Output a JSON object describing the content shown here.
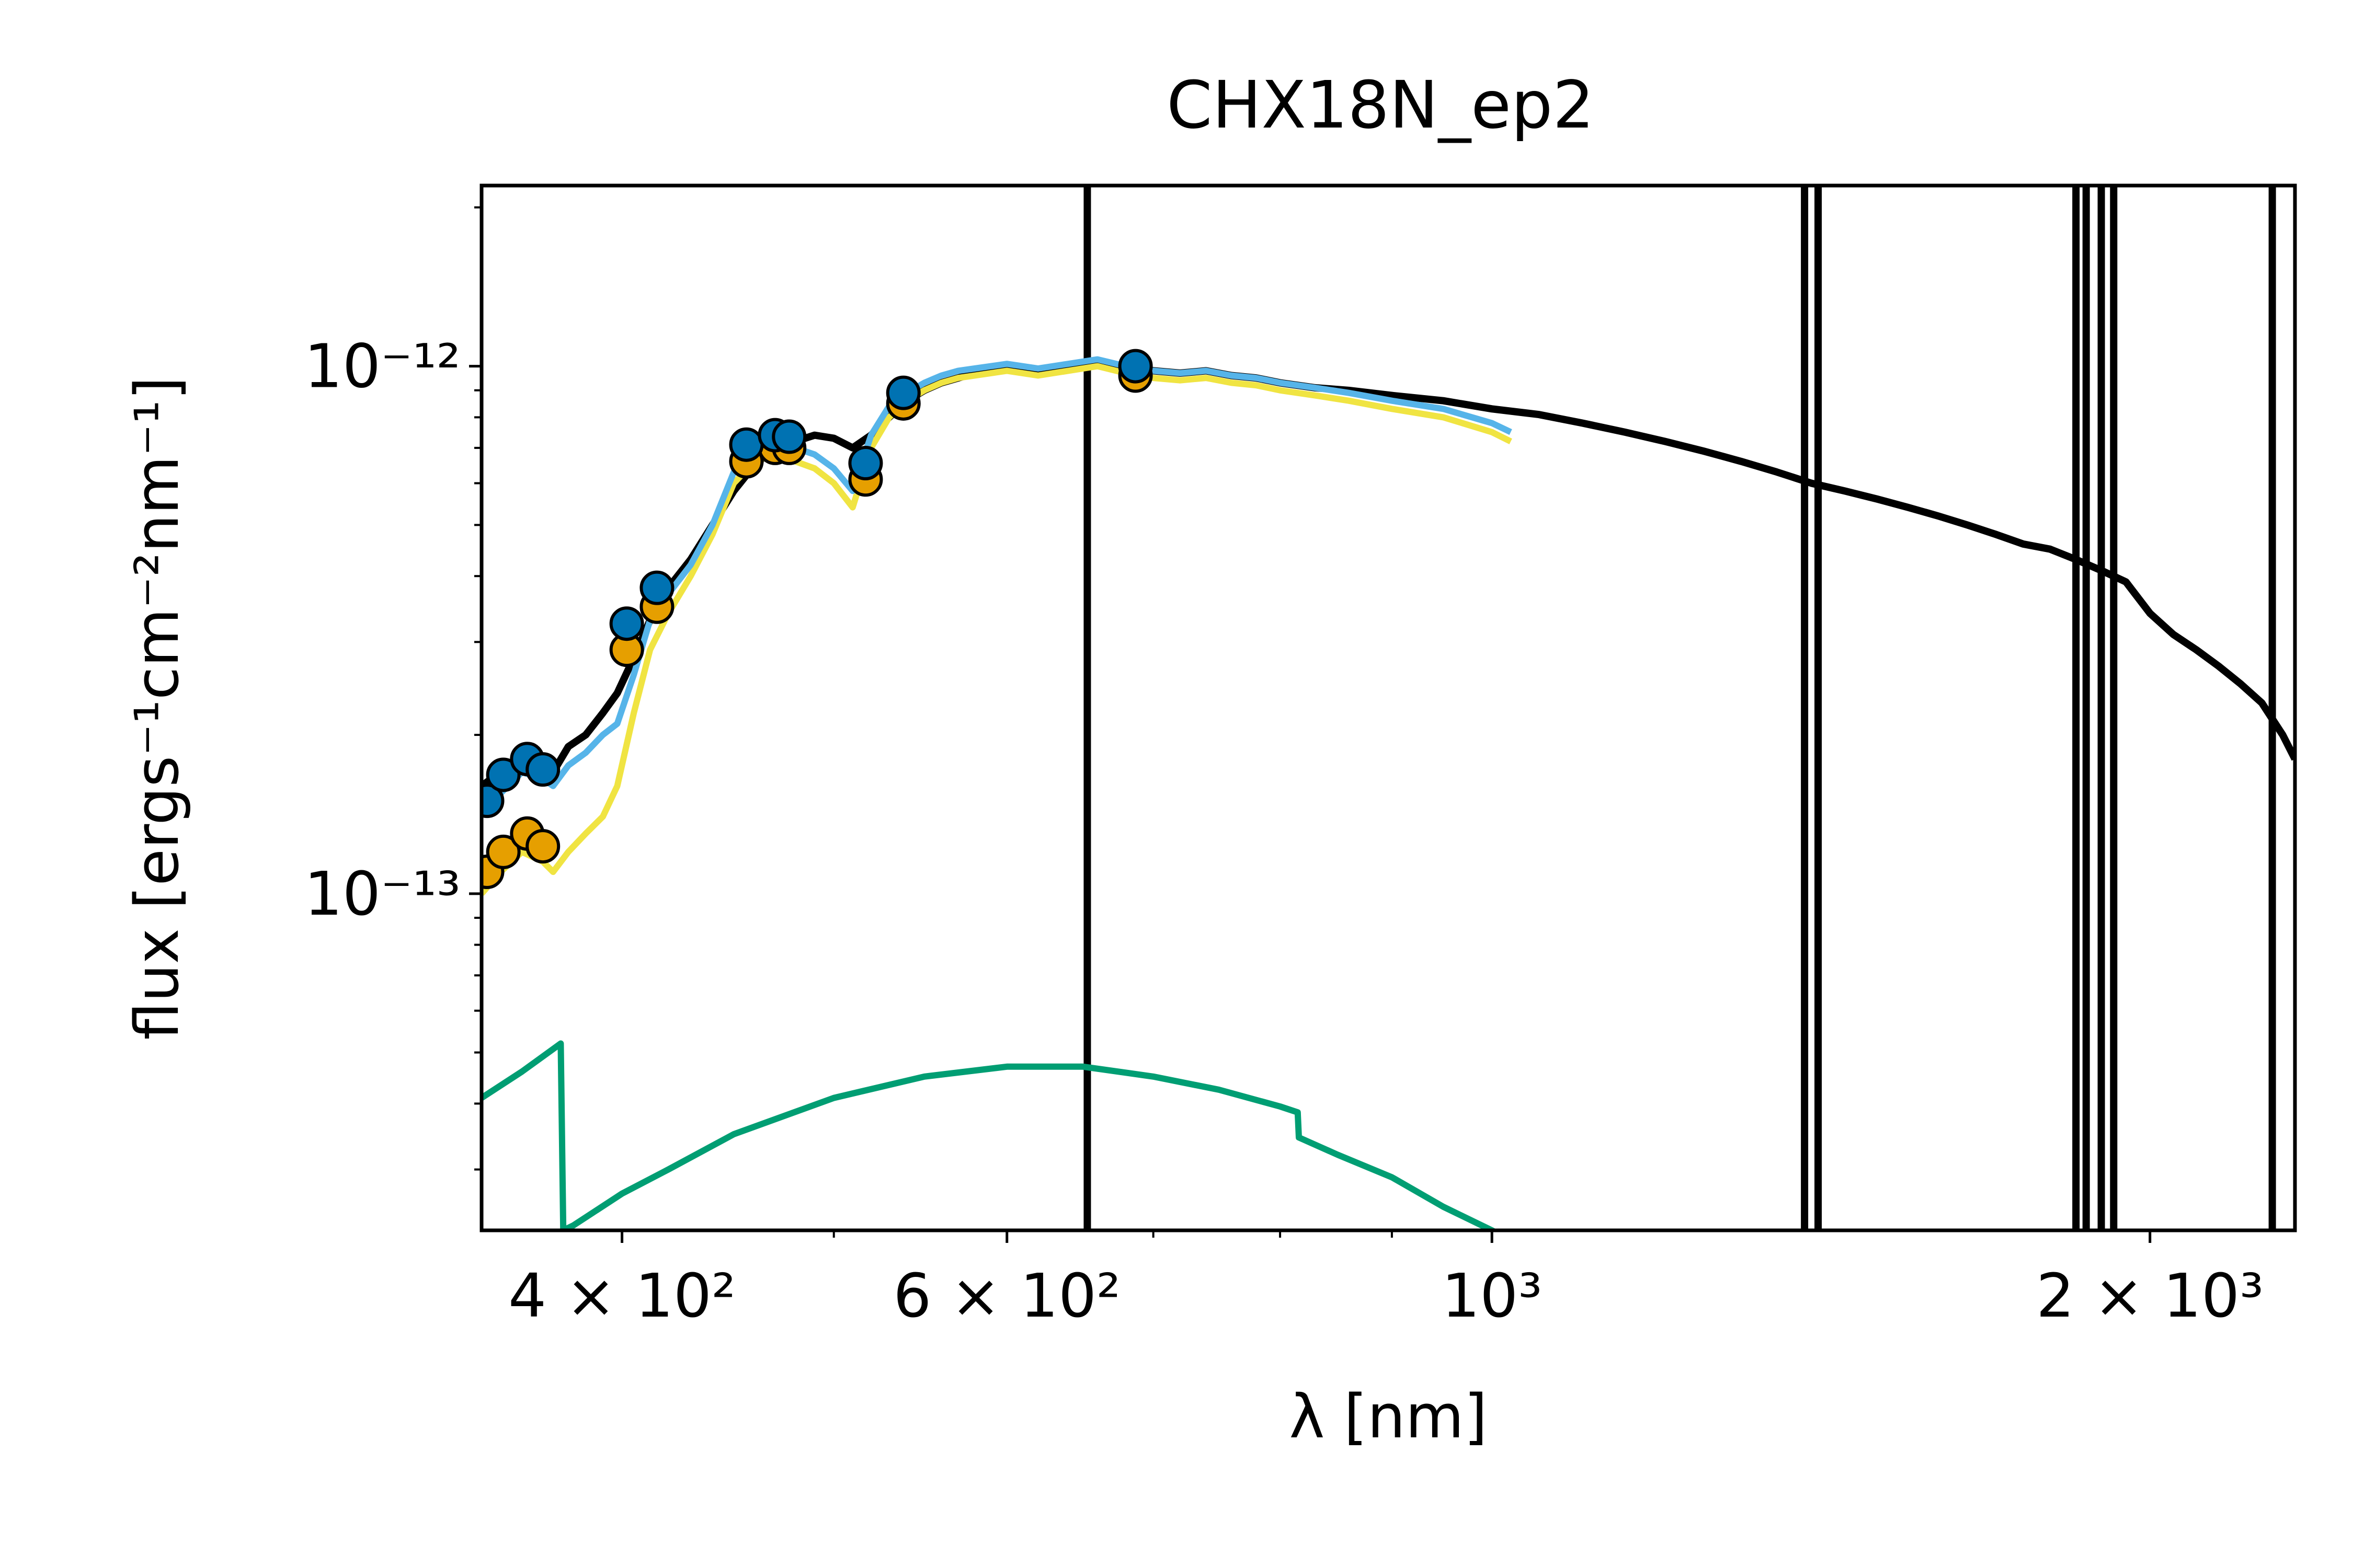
{
  "chart_data": {
    "type": "line",
    "title": "CHX18N_ep2",
    "xlabel": "λ [nm]",
    "ylabel": "flux [ergs⁻¹cm⁻²nm⁻¹]",
    "x_scale": "log",
    "y_scale": "log",
    "xlim": [
      345,
      2330
    ],
    "ylim": [
      2.3e-14,
      2.2e-12
    ],
    "x_ticks": [
      {
        "value": 400,
        "label": "4 × 10²"
      },
      {
        "value": 600,
        "label": "6 × 10²"
      },
      {
        "value": 1000,
        "label": "10³"
      },
      {
        "value": 2000,
        "label": "2 × 10³"
      }
    ],
    "y_ticks": [
      {
        "value": 1e-13,
        "label": "10⁻¹³"
      },
      {
        "value": 1e-12,
        "label": "10⁻¹²"
      }
    ],
    "grid": false,
    "colors": {
      "observed": "#000000",
      "model_yellow": "#f0e442",
      "model_blue": "#56b4e9",
      "points_orange": "#e69f00",
      "points_blue": "#0072b2",
      "residual_green": "#009e73"
    },
    "series": [
      {
        "style": "line",
        "color": "#000000",
        "x": [
          345,
          352,
          360,
          368,
          372,
          378,
          385,
          392,
          398,
          405,
          412,
          420,
          430,
          440,
          450,
          460,
          470,
          480,
          490,
          500,
          510,
          520,
          530,
          540,
          550,
          560,
          570,
          580,
          590,
          600,
          620,
          640,
          660,
          680,
          700,
          720,
          740,
          760,
          780,
          800,
          830,
          860,
          900,
          950,
          1000,
          1050,
          1100,
          1150,
          1200,
          1250,
          1300,
          1350,
          1400,
          1450,
          1500,
          1550,
          1600,
          1650,
          1700,
          1750,
          1800,
          1850,
          1900,
          1950,
          2000,
          2050,
          2100,
          2150,
          2200,
          2250,
          2300,
          2330
        ],
        "y": [
          1.6e-13,
          1.7e-13,
          1.8e-13,
          1.75e-13,
          1.7e-13,
          1.9e-13,
          2e-13,
          2.2e-13,
          2.4e-13,
          2.8e-13,
          3.3e-13,
          3.8e-13,
          4.3e-13,
          5e-13,
          5.8e-13,
          6.5e-13,
          7e-13,
          7.2e-13,
          7.4e-13,
          7.3e-13,
          7e-13,
          7.4e-13,
          8e-13,
          8.6e-13,
          9e-13,
          9.3e-13,
          9.5e-13,
          9.7e-13,
          9.8e-13,
          9.9e-13,
          9.7e-13,
          9.9e-13,
          1.02e-12,
          1e-12,
          9.8e-13,
          9.7e-13,
          9.8e-13,
          9.6e-13,
          9.5e-13,
          9.3e-13,
          9.1e-13,
          9e-13,
          8.8e-13,
          8.6e-13,
          8.3e-13,
          8.1e-13,
          7.8e-13,
          7.5e-13,
          7.2e-13,
          6.9e-13,
          6.6e-13,
          6.3e-13,
          6e-13,
          5.8e-13,
          5.6e-13,
          5.4e-13,
          5.2e-13,
          5e-13,
          4.8e-13,
          4.6e-13,
          4.5e-13,
          4.3e-13,
          4.1e-13,
          3.9e-13,
          3.4e-13,
          3.1e-13,
          2.9e-13,
          2.7e-13,
          2.5e-13,
          2.3e-13,
          2e-13,
          1.8e-13
        ]
      },
      {
        "style": "line",
        "color": "#f0e442",
        "x": [
          345,
          352,
          360,
          368,
          372,
          378,
          385,
          392,
          398,
          405,
          412,
          420,
          430,
          440,
          450,
          460,
          470,
          480,
          490,
          500,
          510,
          520,
          530,
          540,
          550,
          560,
          570,
          580,
          590,
          600,
          620,
          640,
          660,
          680,
          700,
          720,
          740,
          760,
          780,
          800,
          830,
          860,
          900,
          950,
          1000,
          1020
        ],
        "y": [
          1e-13,
          1.1e-13,
          1.2e-13,
          1.15e-13,
          1.1e-13,
          1.2e-13,
          1.3e-13,
          1.4e-13,
          1.6e-13,
          2.2e-13,
          2.9e-13,
          3.4e-13,
          4e-13,
          4.8e-13,
          6e-13,
          6.6e-13,
          6.8e-13,
          6.6e-13,
          6.4e-13,
          6e-13,
          5.4e-13,
          7e-13,
          8e-13,
          8.6e-13,
          9e-13,
          9.3e-13,
          9.5e-13,
          9.6e-13,
          9.7e-13,
          9.8e-13,
          9.6e-13,
          9.8e-13,
          1e-12,
          9.7e-13,
          9.5e-13,
          9.4e-13,
          9.5e-13,
          9.3e-13,
          9.2e-13,
          9e-13,
          8.8e-13,
          8.6e-13,
          8.3e-13,
          8e-13,
          7.5e-13,
          7.2e-13
        ]
      },
      {
        "style": "line",
        "color": "#56b4e9",
        "x": [
          345,
          352,
          360,
          368,
          372,
          378,
          385,
          392,
          398,
          405,
          412,
          420,
          430,
          440,
          450,
          460,
          470,
          480,
          490,
          500,
          510,
          520,
          530,
          540,
          550,
          560,
          570,
          580,
          590,
          600,
          620,
          640,
          660,
          680,
          700,
          720,
          740,
          760,
          780,
          800,
          830,
          860,
          900,
          950,
          1000,
          1020
        ],
        "y": [
          1.45e-13,
          1.55e-13,
          1.7e-13,
          1.65e-13,
          1.6e-13,
          1.75e-13,
          1.85e-13,
          2e-13,
          2.1e-13,
          2.6e-13,
          3.3e-13,
          3.7e-13,
          4.2e-13,
          5e-13,
          6.3e-13,
          6.9e-13,
          7.1e-13,
          7e-13,
          6.8e-13,
          6.4e-13,
          5.8e-13,
          7.4e-13,
          8.4e-13,
          8.9e-13,
          9.3e-13,
          9.6e-13,
          9.8e-13,
          9.9e-13,
          1e-12,
          1.01e-12,
          9.9e-13,
          1.01e-12,
          1.03e-12,
          1e-12,
          9.8e-13,
          9.7e-13,
          9.8e-13,
          9.6e-13,
          9.5e-13,
          9.3e-13,
          9.1e-13,
          8.9e-13,
          8.6e-13,
          8.3e-13,
          7.8e-13,
          7.5e-13
        ]
      },
      {
        "style": "line",
        "color": "#009e73",
        "x": [
          345,
          360,
          375,
          376,
          380,
          400,
          420,
          450,
          500,
          550,
          600,
          650,
          700,
          750,
          800,
          815,
          816,
          850,
          900,
          950,
          1000,
          1010
        ],
        "y": [
          4.1e-14,
          4.6e-14,
          5.2e-14,
          2.3e-14,
          2.35e-14,
          2.7e-14,
          3e-14,
          3.5e-14,
          4.1e-14,
          4.5e-14,
          4.7e-14,
          4.7e-14,
          4.5e-14,
          4.25e-14,
          3.95e-14,
          3.85e-14,
          3.45e-14,
          3.2e-14,
          2.9e-14,
          2.55e-14,
          2.3e-14,
          2.25e-14
        ]
      },
      {
        "style": "scatter",
        "color": "#e69f00",
        "x": [
          347,
          353,
          362,
          368,
          402,
          415,
          456,
          470,
          477,
          517,
          538,
          687
        ],
        "y": [
          1.1e-13,
          1.2e-13,
          1.3e-13,
          1.23e-13,
          2.9e-13,
          3.5e-13,
          6.6e-13,
          7e-13,
          7e-13,
          6.1e-13,
          8.5e-13,
          9.6e-13
        ]
      },
      {
        "style": "scatter",
        "color": "#0072b2",
        "x": [
          347,
          353,
          362,
          368,
          402,
          415,
          456,
          470,
          477,
          517,
          538,
          687
        ],
        "y": [
          1.5e-13,
          1.68e-13,
          1.8e-13,
          1.72e-13,
          3.25e-13,
          3.8e-13,
          7.1e-13,
          7.4e-13,
          7.35e-13,
          6.55e-13,
          8.9e-13,
          1e-12
        ]
      }
    ],
    "spikes": [
      {
        "x": 653,
        "y_top": 2.2e-12,
        "y_bottom": 2.3e-14
      },
      {
        "x": 1390,
        "y_top": 2.2e-12,
        "y_bottom": 2.3e-14
      },
      {
        "x": 1410,
        "y_top": 2.2e-12,
        "y_bottom": 2.3e-14
      },
      {
        "x": 1850,
        "y_top": 2.2e-12,
        "y_bottom": 2.3e-14
      },
      {
        "x": 1870,
        "y_top": 2.2e-12,
        "y_bottom": 2.3e-14
      },
      {
        "x": 1900,
        "y_top": 2.2e-12,
        "y_bottom": 2.3e-14
      },
      {
        "x": 1925,
        "y_top": 2.2e-12,
        "y_bottom": 2.3e-14
      },
      {
        "x": 2275,
        "y_top": 2.2e-12,
        "y_bottom": 2.3e-14
      }
    ]
  }
}
